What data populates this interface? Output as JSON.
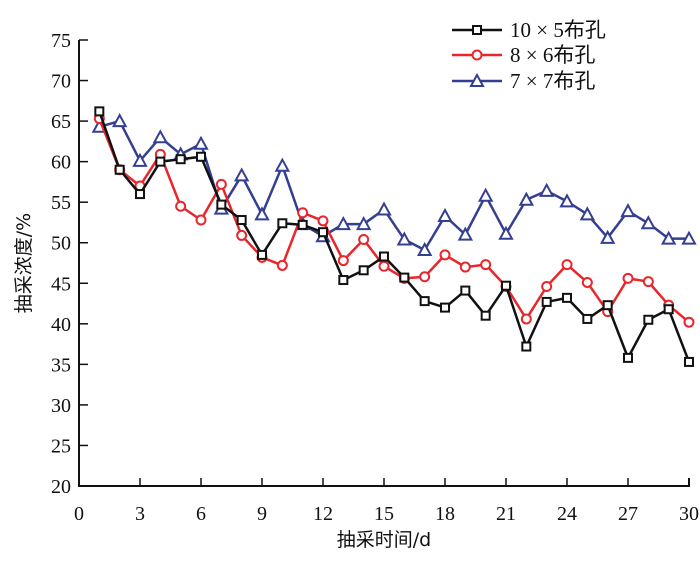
{
  "chart_data": {
    "type": "line",
    "title": "",
    "xlabel": "抽采时间/d",
    "ylabel": "抽采浓度/%",
    "xlim": [
      0,
      30
    ],
    "ylim": [
      20,
      75
    ],
    "xticks": [
      0,
      3,
      6,
      9,
      12,
      15,
      18,
      21,
      24,
      27,
      30
    ],
    "yticks": [
      20,
      25,
      30,
      35,
      40,
      45,
      50,
      55,
      60,
      65,
      70,
      75
    ],
    "grid": false,
    "legend_position": "top-right",
    "x": [
      1,
      2,
      3,
      4,
      5,
      6,
      7,
      8,
      9,
      10,
      11,
      12,
      13,
      14,
      15,
      16,
      17,
      18,
      19,
      20,
      21,
      22,
      23,
      24,
      25,
      26,
      27,
      28,
      29,
      30
    ],
    "series": [
      {
        "name": "10 × 5布孔",
        "color": "#111111",
        "marker": "square",
        "values": [
          66.2,
          59.0,
          56.0,
          60.0,
          60.3,
          60.6,
          54.7,
          52.8,
          48.5,
          52.4,
          52.2,
          51.3,
          45.4,
          46.6,
          48.3,
          45.7,
          42.8,
          42.0,
          44.1,
          41.0,
          44.7,
          37.2,
          42.7,
          43.2,
          40.6,
          42.3,
          35.8,
          40.5,
          41.8,
          35.3
        ]
      },
      {
        "name": "8 × 6布孔",
        "color": "#e8262b",
        "marker": "circle",
        "values": [
          65.3,
          59.0,
          57.0,
          60.9,
          54.5,
          52.8,
          57.2,
          50.9,
          48.2,
          47.2,
          53.7,
          52.7,
          47.8,
          50.4,
          47.1,
          45.6,
          45.8,
          48.5,
          47.0,
          47.3,
          44.6,
          40.6,
          44.6,
          47.3,
          45.1,
          41.5,
          45.6,
          45.2,
          42.3,
          40.2
        ]
      },
      {
        "name": "7 × 7布孔",
        "color": "#343f92",
        "marker": "triangle",
        "values": [
          64.3,
          65.0,
          60.1,
          63.0,
          60.9,
          62.2,
          54.2,
          58.3,
          53.5,
          59.5,
          52.3,
          50.8,
          52.3,
          52.3,
          54.1,
          50.4,
          49.1,
          53.3,
          51.0,
          55.8,
          51.1,
          55.3,
          56.4,
          55.1,
          53.5,
          50.6,
          53.9,
          52.4,
          50.5,
          50.5
        ]
      }
    ]
  }
}
